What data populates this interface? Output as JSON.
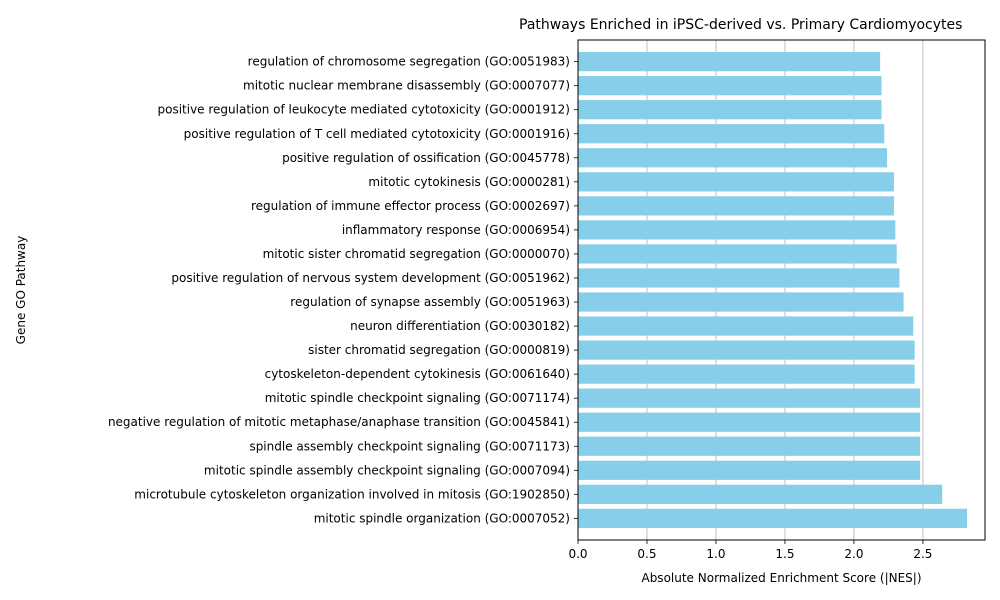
{
  "chart_data": {
    "type": "bar",
    "orientation": "horizontal",
    "title": "Pathways Enriched in iPSC-derived vs. Primary Cardiomyocytes",
    "xlabel": "Absolute Normalized Enrichment Score (|NES|)",
    "ylabel": "Gene GO Pathway",
    "xlim": [
      0,
      2.95
    ],
    "xticks": [
      "0.0",
      "0.5",
      "1.0",
      "1.5",
      "2.0",
      "2.5"
    ],
    "grid": "x",
    "bar_color": "#87CEEB",
    "categories": [
      "mitotic spindle organization (GO:0007052)",
      "microtubule cytoskeleton organization involved in mitosis (GO:1902850)",
      "mitotic spindle assembly checkpoint signaling (GO:0007094)",
      "spindle assembly checkpoint signaling (GO:0071173)",
      "negative regulation of mitotic metaphase/anaphase transition (GO:0045841)",
      "mitotic spindle checkpoint signaling (GO:0071174)",
      "cytoskeleton-dependent cytokinesis (GO:0061640)",
      "sister chromatid segregation (GO:0000819)",
      "neuron differentiation (GO:0030182)",
      "regulation of synapse assembly (GO:0051963)",
      "positive regulation of nervous system development (GO:0051962)",
      "mitotic sister chromatid segregation (GO:0000070)",
      "inflammatory response (GO:0006954)",
      "regulation of immune effector process (GO:0002697)",
      "mitotic cytokinesis (GO:0000281)",
      "positive regulation of ossification (GO:0045778)",
      "positive regulation of T cell mediated cytotoxicity (GO:0001916)",
      "positive regulation of leukocyte mediated cytotoxicity (GO:0001912)",
      "mitotic nuclear membrane disassembly (GO:0007077)",
      "regulation of chromosome segregation (GO:0051983)"
    ],
    "values": [
      2.82,
      2.64,
      2.48,
      2.48,
      2.48,
      2.48,
      2.44,
      2.44,
      2.43,
      2.36,
      2.33,
      2.31,
      2.3,
      2.29,
      2.29,
      2.24,
      2.22,
      2.2,
      2.2,
      2.19
    ]
  }
}
